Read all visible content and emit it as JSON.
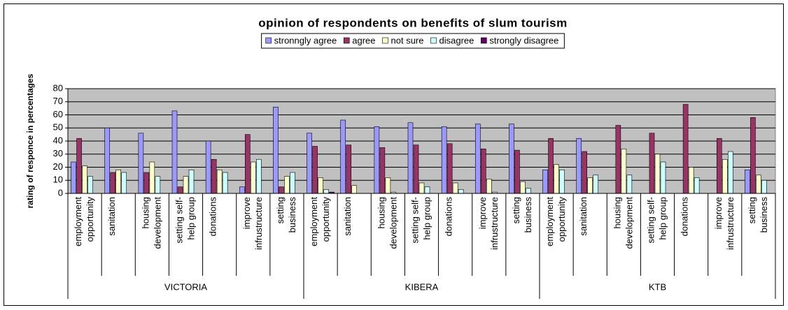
{
  "chart_data": {
    "type": "bar",
    "title": "opinion of respondents on benefits of slum tourism",
    "y_label": "rating of responce in percentages",
    "groups": [
      "VICTORIA",
      "KIBERA",
      "KTB"
    ],
    "categories": [
      "employment opportunity",
      "sanitation",
      "housing development",
      "setting self-help group",
      "donations",
      "improve infrustructure",
      "setting business",
      "employment opportunity",
      "sanitation",
      "housing development",
      "setting self-help group",
      "donations",
      "improve infrustructure",
      "setting business",
      "employment opportunity",
      "sanitation",
      "housing development",
      "setting self-help group",
      "donations",
      "improve infrustructure",
      "setting business"
    ],
    "series": [
      {
        "name": "stronngly agree",
        "color": "#9999ff",
        "values": [
          24,
          50,
          46,
          63,
          40,
          5,
          66,
          46,
          56,
          51,
          54,
          51,
          53,
          53,
          18,
          42,
          0,
          0,
          0,
          0,
          18
        ]
      },
      {
        "name": "agree",
        "color": "#993366",
        "values": [
          42,
          16,
          16,
          5,
          26,
          45,
          5,
          36,
          37,
          35,
          37,
          38,
          34,
          33,
          42,
          32,
          52,
          46,
          68,
          42,
          58
        ]
      },
      {
        "name": "not sure",
        "color": "#ffffcc",
        "values": [
          21,
          18,
          24,
          13,
          18,
          24,
          13,
          12,
          6,
          12,
          8,
          8,
          11,
          9,
          22,
          12,
          34,
          30,
          20,
          26,
          14
        ]
      },
      {
        "name": "disagree",
        "color": "#ccffff",
        "values": [
          13,
          16,
          13,
          18,
          16,
          26,
          16,
          3,
          0,
          1,
          5,
          3,
          1,
          4,
          18,
          14,
          14,
          24,
          12,
          32,
          10
        ]
      },
      {
        "name": "strongly disagree",
        "color": "#660066",
        "values": [
          0,
          0,
          0,
          0,
          0,
          0,
          0,
          1,
          0,
          0,
          0,
          0,
          0,
          0,
          0,
          0,
          0,
          0,
          0,
          0,
          0
        ]
      }
    ],
    "ylim": [
      0,
      80
    ],
    "yticks": [
      0,
      10,
      20,
      30,
      40,
      50,
      60,
      70,
      80
    ],
    "grid": true,
    "legend": "top"
  }
}
